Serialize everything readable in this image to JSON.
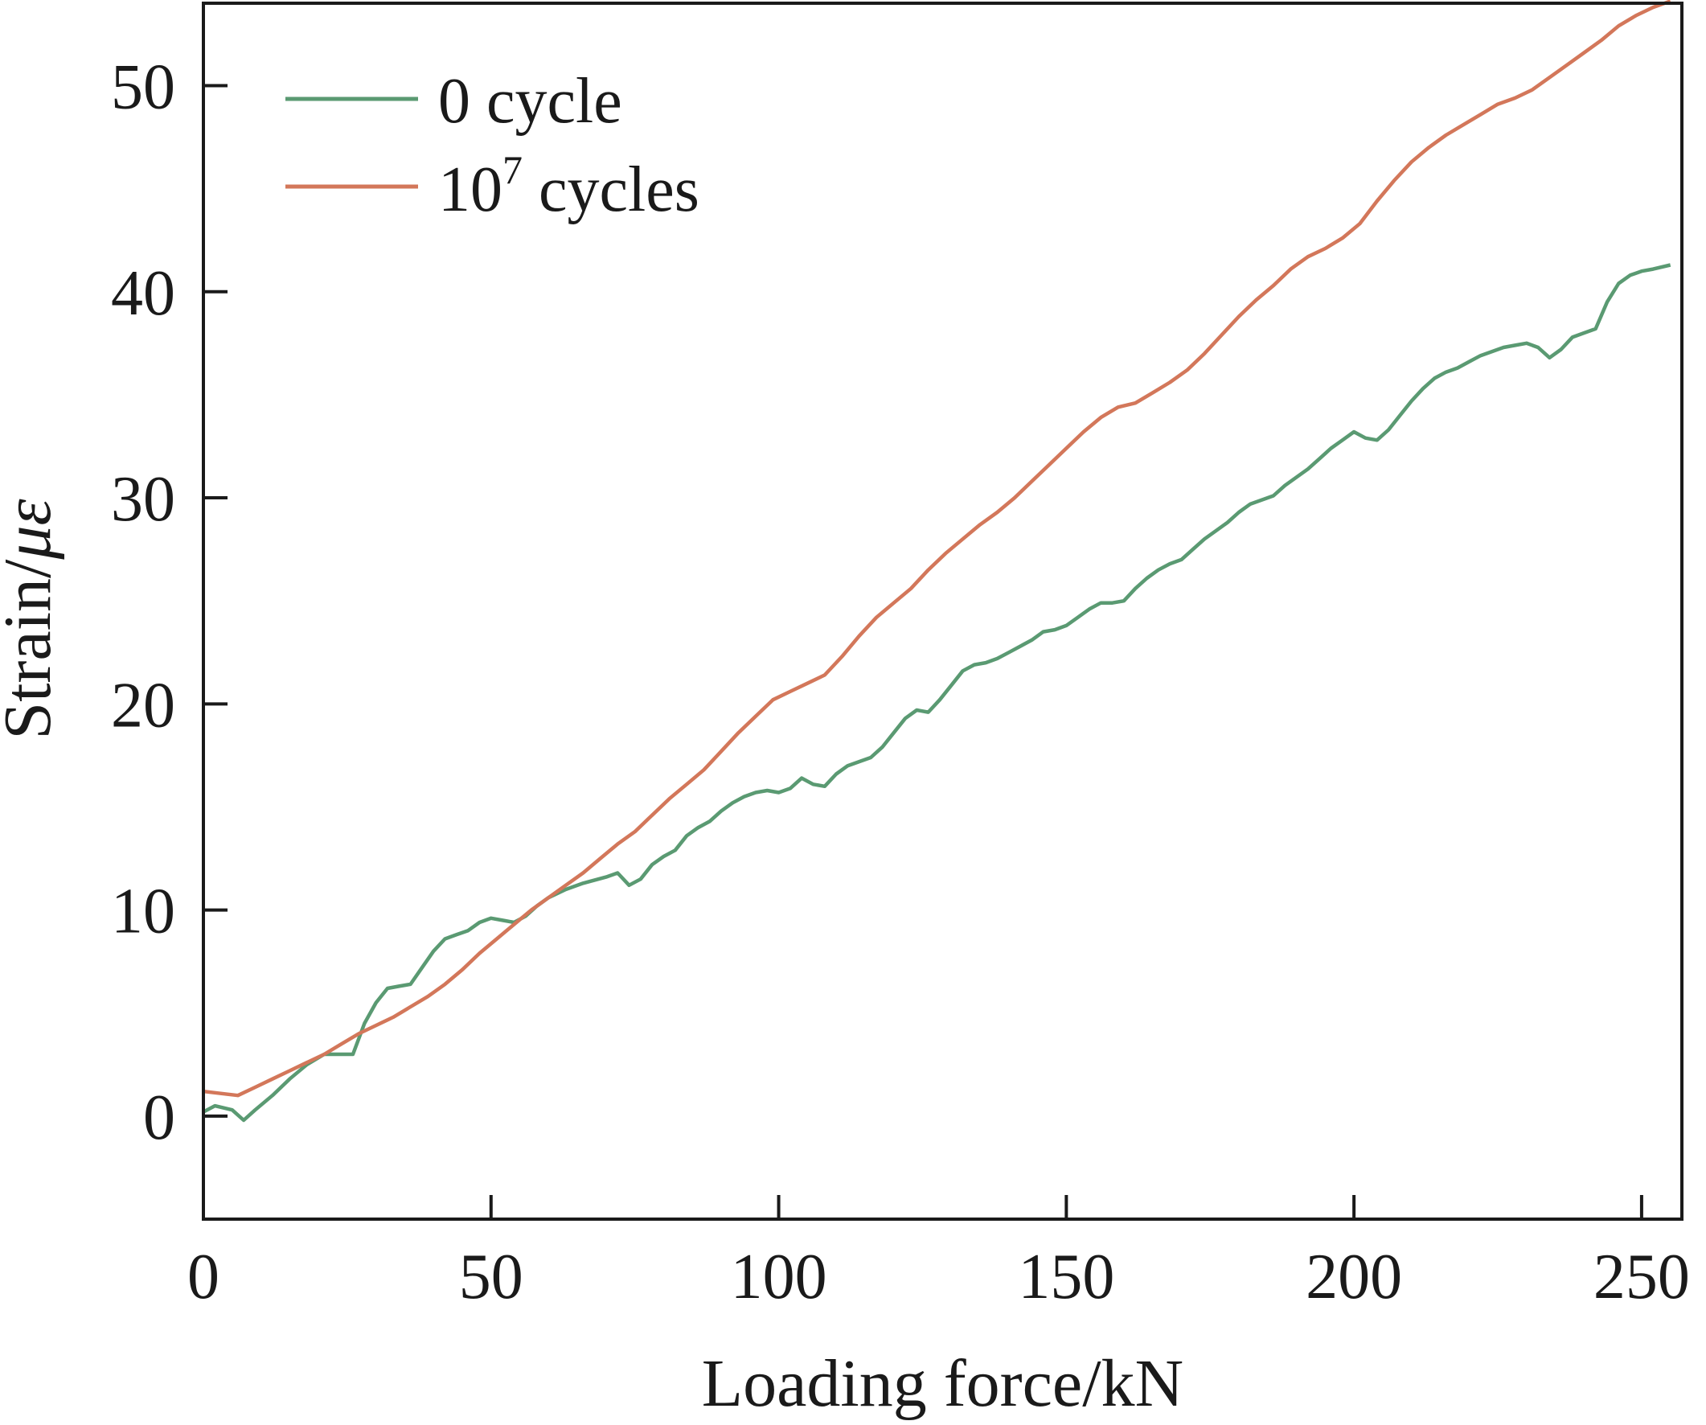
{
  "chart_data": {
    "type": "line",
    "title": "",
    "xlabel": "Loading force/kN",
    "ylabel_main": "Strain/",
    "ylabel_unit": "με",
    "xlim": [
      0,
      257
    ],
    "ylim": [
      -5,
      54
    ],
    "xticks": [
      0,
      50,
      100,
      150,
      200,
      250
    ],
    "yticks": [
      0,
      10,
      20,
      30,
      40,
      50
    ],
    "grid": false,
    "legend_position": "top-left",
    "series": [
      {
        "name": "0 cycle",
        "color": "#5a9a72",
        "x": [
          0,
          2,
          5,
          7,
          9,
          12,
          15,
          18,
          21,
          24,
          26,
          28,
          30,
          32,
          34,
          36,
          38,
          40,
          42,
          44,
          46,
          48,
          50,
          52,
          54,
          56,
          58,
          60,
          63,
          66,
          70,
          72,
          74,
          76,
          78,
          80,
          82,
          84,
          86,
          88,
          90,
          92,
          94,
          96,
          98,
          100,
          102,
          104,
          106,
          108,
          110,
          112,
          114,
          116,
          118,
          120,
          122,
          124,
          126,
          128,
          130,
          132,
          134,
          136,
          138,
          140,
          142,
          144,
          146,
          148,
          150,
          152,
          154,
          156,
          158,
          160,
          162,
          164,
          166,
          168,
          170,
          172,
          174,
          176,
          178,
          180,
          182,
          184,
          186,
          188,
          190,
          192,
          194,
          196,
          198,
          200,
          202,
          204,
          206,
          208,
          210,
          212,
          214,
          216,
          218,
          220,
          222,
          224,
          226,
          228,
          230,
          232,
          234,
          236,
          238,
          240,
          242,
          244,
          246,
          248,
          250,
          252,
          255
        ],
        "values": [
          0.2,
          0.5,
          0.3,
          -0.2,
          0.3,
          1.0,
          1.8,
          2.5,
          3.0,
          3.0,
          3.0,
          4.5,
          5.5,
          6.2,
          6.3,
          6.4,
          7.2,
          8.0,
          8.6,
          8.8,
          9.0,
          9.4,
          9.6,
          9.5,
          9.4,
          9.7,
          10.2,
          10.6,
          11.0,
          11.3,
          11.6,
          11.8,
          11.2,
          11.5,
          12.2,
          12.6,
          12.9,
          13.6,
          14.0,
          14.3,
          14.8,
          15.2,
          15.5,
          15.7,
          15.8,
          15.7,
          15.9,
          16.4,
          16.1,
          16.0,
          16.6,
          17.0,
          17.2,
          17.4,
          17.9,
          18.6,
          19.3,
          19.7,
          19.6,
          20.2,
          20.9,
          21.6,
          21.9,
          22.0,
          22.2,
          22.5,
          22.8,
          23.1,
          23.5,
          23.6,
          23.8,
          24.2,
          24.6,
          24.9,
          24.9,
          25.0,
          25.6,
          26.1,
          26.5,
          26.8,
          27.0,
          27.5,
          28.0,
          28.4,
          28.8,
          29.3,
          29.7,
          29.9,
          30.1,
          30.6,
          31.0,
          31.4,
          31.9,
          32.4,
          32.8,
          33.2,
          32.9,
          32.8,
          33.3,
          34.0,
          34.7,
          35.3,
          35.8,
          36.1,
          36.3,
          36.6,
          36.9,
          37.1,
          37.3,
          37.4,
          37.5,
          37.3,
          36.8,
          37.2,
          37.8,
          38.0,
          38.2,
          39.5,
          40.4,
          40.8,
          41.0,
          41.1,
          41.3
        ]
      },
      {
        "name": "10⁷ cycles",
        "color": "#d3775a",
        "x": [
          0,
          3,
          6,
          9,
          12,
          15,
          18,
          21,
          24,
          27,
          30,
          33,
          36,
          39,
          42,
          45,
          48,
          51,
          54,
          57,
          60,
          63,
          66,
          69,
          72,
          75,
          78,
          81,
          84,
          87,
          90,
          93,
          96,
          99,
          102,
          105,
          108,
          111,
          114,
          117,
          120,
          123,
          126,
          129,
          132,
          135,
          138,
          141,
          144,
          147,
          150,
          153,
          156,
          159,
          162,
          165,
          168,
          171,
          174,
          177,
          180,
          183,
          186,
          189,
          192,
          195,
          198,
          201,
          204,
          207,
          210,
          213,
          216,
          219,
          222,
          225,
          228,
          231,
          234,
          237,
          240,
          243,
          246,
          249,
          252,
          255
        ],
        "values": [
          1.2,
          1.1,
          1.0,
          1.4,
          1.8,
          2.2,
          2.6,
          3.0,
          3.5,
          4.0,
          4.4,
          4.8,
          5.3,
          5.8,
          6.4,
          7.1,
          7.9,
          8.6,
          9.3,
          10.0,
          10.6,
          11.2,
          11.8,
          12.5,
          13.2,
          13.8,
          14.6,
          15.4,
          16.1,
          16.8,
          17.7,
          18.6,
          19.4,
          20.2,
          20.6,
          21.0,
          21.4,
          22.3,
          23.3,
          24.2,
          24.9,
          25.6,
          26.5,
          27.3,
          28.0,
          28.7,
          29.3,
          30.0,
          30.8,
          31.6,
          32.4,
          33.2,
          33.9,
          34.4,
          34.6,
          35.1,
          35.6,
          36.2,
          37.0,
          37.9,
          38.8,
          39.6,
          40.3,
          41.1,
          41.7,
          42.1,
          42.6,
          43.3,
          44.4,
          45.4,
          46.3,
          47.0,
          47.6,
          48.1,
          48.6,
          49.1,
          49.4,
          49.8,
          50.4,
          51.0,
          51.6,
          52.2,
          52.9,
          53.4,
          53.8,
          54.1
        ]
      }
    ]
  },
  "legend": {
    "entries": [
      {
        "label": "0 cycle",
        "color": "#5a9a72"
      },
      {
        "label_base": "10",
        "label_sup": "7",
        "label_rest": " cycles",
        "color": "#d3775a"
      }
    ]
  },
  "axis_color": "#1a1a1a"
}
